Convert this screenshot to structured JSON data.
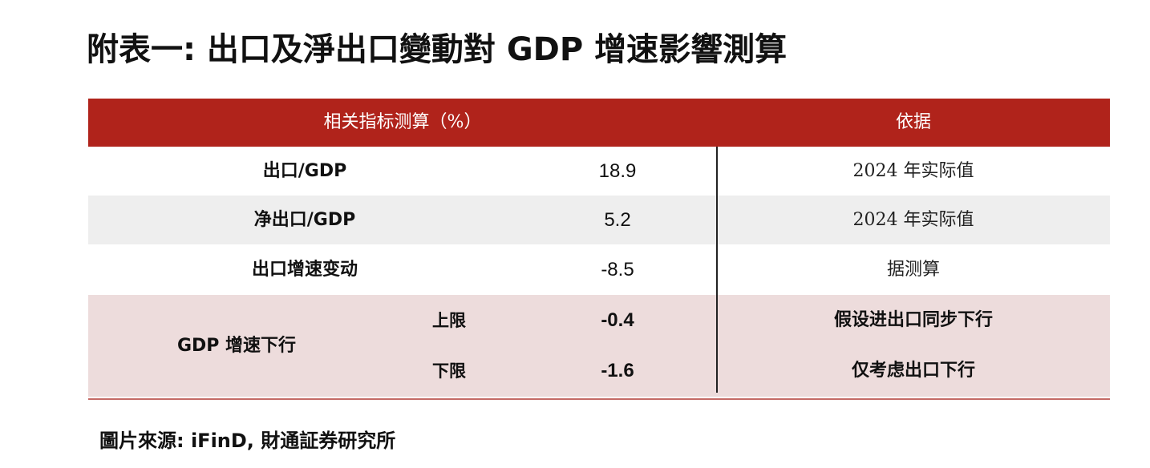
{
  "title": "附表一: 出口及淨出口變動對 GDP 增速影響測算",
  "table": {
    "header": {
      "left": "相关指标测算（%）",
      "right": "依据"
    },
    "rows": [
      {
        "label": "出口/GDP",
        "value": "18.9",
        "basis": "2024 年实际值"
      },
      {
        "label": "净出口/GDP",
        "value": "5.2",
        "basis": "2024 年实际值"
      },
      {
        "label": "出口增速变动",
        "value": "-8.5",
        "basis": "据测算"
      }
    ],
    "gdp_group": {
      "label": "GDP 增速下行",
      "upper": {
        "label": "上限",
        "value": "-0.4",
        "basis": "假设进出口同步下行"
      },
      "lower": {
        "label": "下限",
        "value": "-1.6",
        "basis": "仅考虑出口下行"
      }
    }
  },
  "source": "圖片來源: iFinD, 財通証券研究所",
  "colors": {
    "header_bg": "#b0231b",
    "shaded_row": "#eeeeee",
    "gdp_row_bg": "#eddcdc"
  }
}
